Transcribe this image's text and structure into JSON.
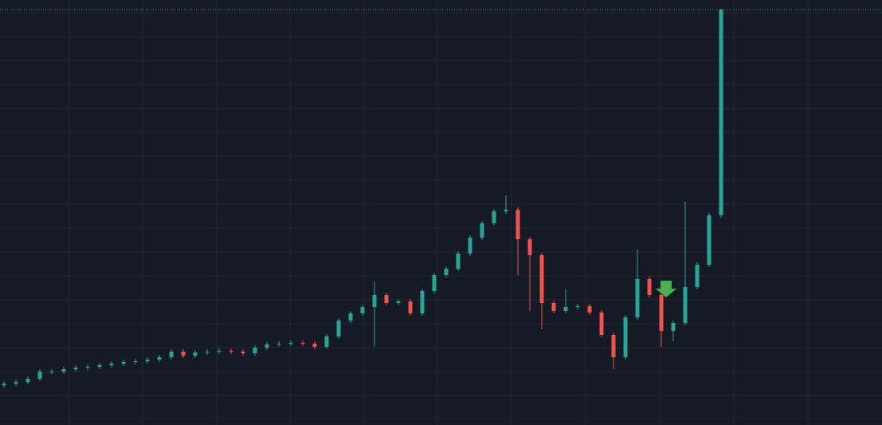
{
  "chart_data": {
    "type": "candlestick",
    "ylim": [
      0,
      533
    ],
    "yticks": [
      7,
      37,
      67,
      97,
      127,
      157,
      187,
      217,
      247,
      277,
      307,
      337,
      367,
      397,
      427,
      457,
      487,
      517
    ],
    "grid": true,
    "up_color": "#26a69a",
    "down_color": "#ef5350",
    "open": [
      50,
      52,
      54,
      58,
      67,
      67,
      70,
      72,
      73,
      75,
      77,
      79,
      80,
      82,
      85,
      92,
      87,
      91,
      92,
      93,
      92,
      90,
      97,
      101,
      102,
      103,
      102,
      98,
      111,
      131,
      140,
      148,
      163,
      153,
      155,
      140,
      168,
      188,
      196,
      215,
      235,
      253,
      268,
      270,
      233,
      213,
      153,
      143,
      148,
      149,
      141,
      113,
      85,
      135,
      183,
      163,
      118,
      128,
      173,
      201,
      263
    ],
    "high": [
      55,
      57,
      61,
      70,
      70,
      73,
      75,
      76,
      78,
      80,
      82,
      83,
      85,
      88,
      95,
      95,
      94,
      95,
      96,
      96,
      95,
      100,
      104,
      105,
      106,
      106,
      105,
      114,
      134,
      143,
      151,
      180,
      166,
      158,
      158,
      171,
      191,
      199,
      218,
      238,
      256,
      271,
      288,
      273,
      236,
      216,
      156,
      170,
      152,
      152,
      144,
      116,
      138,
      220,
      186,
      166,
      131,
      280,
      204,
      266,
      522
    ],
    "low": [
      47,
      49,
      51,
      55,
      64,
      64,
      67,
      69,
      70,
      72,
      74,
      76,
      77,
      79,
      82,
      84,
      84,
      88,
      89,
      89,
      87,
      87,
      94,
      98,
      99,
      99,
      95,
      95,
      108,
      128,
      137,
      98,
      150,
      150,
      137,
      137,
      165,
      185,
      193,
      212,
      232,
      250,
      265,
      188,
      143,
      120,
      140,
      140,
      145,
      138,
      110,
      70,
      82,
      132,
      160,
      98,
      105,
      125,
      170,
      198,
      260
    ],
    "close": [
      52,
      54,
      58,
      67,
      67,
      70,
      72,
      73,
      75,
      77,
      79,
      80,
      82,
      85,
      92,
      87,
      91,
      92,
      93,
      92,
      90,
      97,
      101,
      102,
      103,
      102,
      98,
      111,
      131,
      140,
      148,
      163,
      153,
      155,
      140,
      168,
      188,
      196,
      215,
      235,
      253,
      268,
      270,
      233,
      213,
      153,
      143,
      148,
      149,
      141,
      113,
      85,
      135,
      183,
      163,
      118,
      128,
      173,
      201,
      263,
      521
    ]
  }
}
